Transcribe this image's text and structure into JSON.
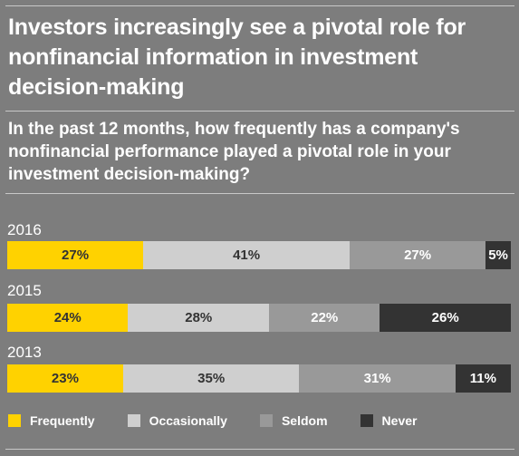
{
  "title": "Investors increasingly see a pivotal role for nonfinancial information in investment decision-making",
  "subtitle": "In the past 12 months, how frequently has a company's nonfinancial performance played a pivotal role in your investment decision-making?",
  "chart_data": {
    "type": "bar",
    "orientation": "horizontal",
    "stacked": true,
    "categories": [
      "2016",
      "2015",
      "2013"
    ],
    "series": [
      {
        "name": "Frequently",
        "color": "#ffd200",
        "text_color": "#333333",
        "values": [
          27,
          24,
          23
        ],
        "labels": [
          "27%",
          "24%",
          "23%"
        ]
      },
      {
        "name": "Occasionally",
        "color": "#cfcfcf",
        "text_color": "#333333",
        "values": [
          41,
          28,
          35
        ],
        "labels": [
          "41%",
          "28%",
          "35%"
        ]
      },
      {
        "name": "Seldom",
        "color": "#999999",
        "text_color": "#ffffff",
        "values": [
          27,
          22,
          31
        ],
        "labels": [
          "27%",
          "22%",
          "31%"
        ]
      },
      {
        "name": "Never",
        "color": "#333333",
        "text_color": "#ffffff",
        "values": [
          5,
          26,
          11
        ],
        "labels": [
          "5%",
          "26%",
          "11%"
        ]
      }
    ],
    "legend_position": "bottom",
    "grid": false
  }
}
